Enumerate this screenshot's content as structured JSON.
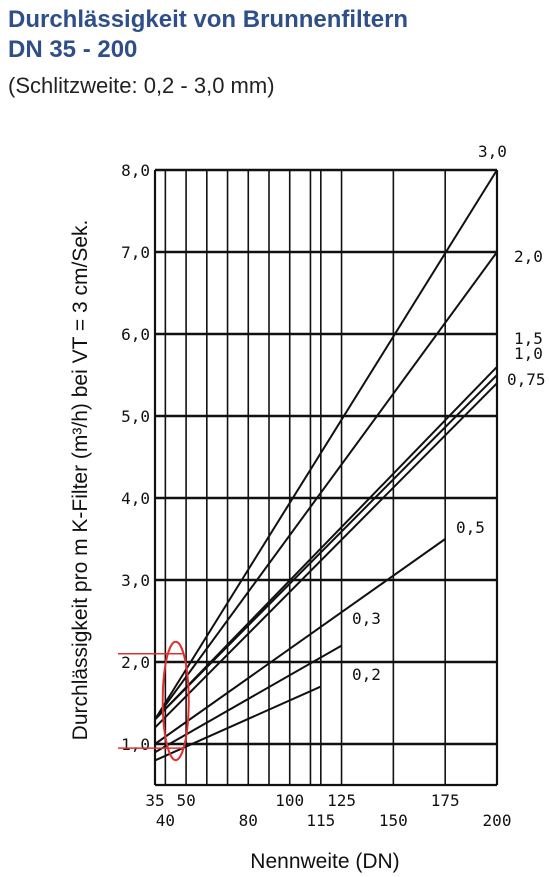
{
  "header": {
    "title_line1": "Durchlässigkeit von Brunnenfiltern",
    "title_line2": "DN 35 - 200",
    "subtitle": "(Schlitzweite: 0,2 - 3,0 mm)"
  },
  "chart_data": {
    "type": "line",
    "xlabel": "Nennweite (DN)",
    "ylabel": "Durchlässigkeit pro m K-Filter (m³/h) bei VT = 3 cm/Sek.",
    "xlim": [
      35,
      200
    ],
    "ylim": [
      0.5,
      8.0
    ],
    "x_ticks_upper": [
      "35",
      "50",
      "100",
      "125",
      "175"
    ],
    "x_ticks_lower": [
      "40",
      "80",
      "115",
      "150",
      "200"
    ],
    "x_grid": [
      35,
      40,
      50,
      60,
      70,
      80,
      90,
      100,
      110,
      115,
      125,
      150,
      175,
      200
    ],
    "y_ticks": [
      "1,0",
      "2,0",
      "3,0",
      "4,0",
      "5,0",
      "6,0",
      "7,0",
      "8,0"
    ],
    "y_tick_values": [
      1,
      2,
      3,
      4,
      5,
      6,
      7,
      8
    ],
    "grid": true,
    "series": [
      {
        "name": "3,0",
        "x": [
          35,
          200
        ],
        "y": [
          1.3,
          8.0
        ]
      },
      {
        "name": "2,0",
        "x": [
          35,
          200
        ],
        "y": [
          1.3,
          7.0
        ]
      },
      {
        "name": "1,5",
        "x": [
          35,
          200
        ],
        "y": [
          1.3,
          5.6
        ]
      },
      {
        "name": "1,0",
        "x": [
          35,
          200
        ],
        "y": [
          1.3,
          5.5
        ]
      },
      {
        "name": "0,75",
        "x": [
          35,
          200
        ],
        "y": [
          1.2,
          5.4
        ]
      },
      {
        "name": "0,5",
        "x": [
          35,
          175
        ],
        "y": [
          1.0,
          3.5
        ]
      },
      {
        "name": "0,3",
        "x": [
          35,
          125
        ],
        "y": [
          0.9,
          2.2
        ]
      },
      {
        "name": "0,2",
        "x": [
          35,
          115
        ],
        "y": [
          0.8,
          1.7
        ]
      }
    ],
    "annotations": {
      "marker_x": 45,
      "marker_y_low": 0.95,
      "marker_y_high": 2.1,
      "color": "#e03030"
    }
  }
}
